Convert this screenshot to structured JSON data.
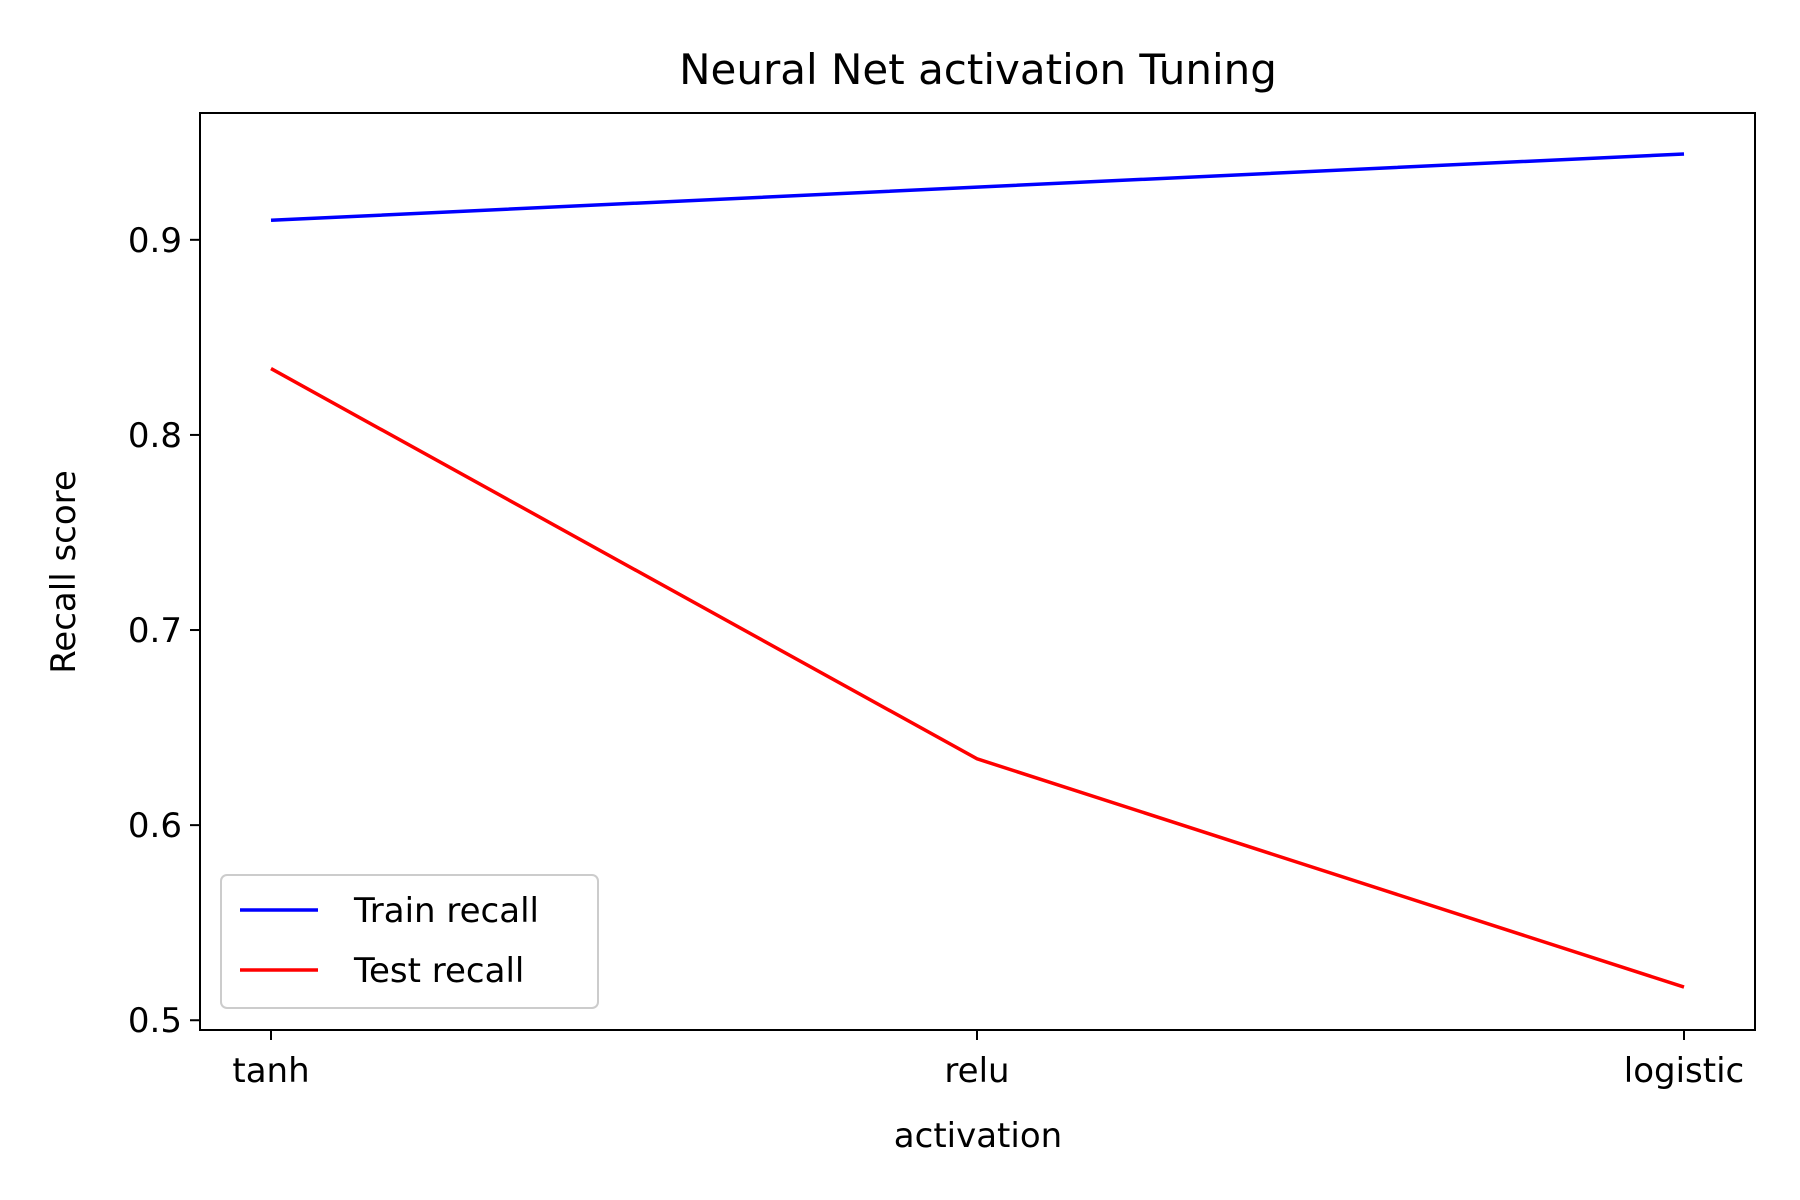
{
  "chart_data": {
    "type": "line",
    "title": "Neural Net activation Tuning",
    "xlabel": "activation",
    "ylabel": "Recall score",
    "categories": [
      "tanh",
      "relu",
      "logistic"
    ],
    "ylim": [
      0.495,
      0.965
    ],
    "yticks": [
      0.5,
      0.6,
      0.7,
      0.8,
      0.9
    ],
    "ytick_labels": [
      "0.5",
      "0.6",
      "0.7",
      "0.8",
      "0.9"
    ],
    "grid": false,
    "legend_position": "lower-left",
    "series": [
      {
        "name": "Train recall",
        "color": "#0000ff",
        "values": [
          0.91,
          0.927,
          0.944
        ]
      },
      {
        "name": "Test recall",
        "color": "#ff0000",
        "values": [
          0.834,
          0.634,
          0.517
        ]
      }
    ]
  }
}
